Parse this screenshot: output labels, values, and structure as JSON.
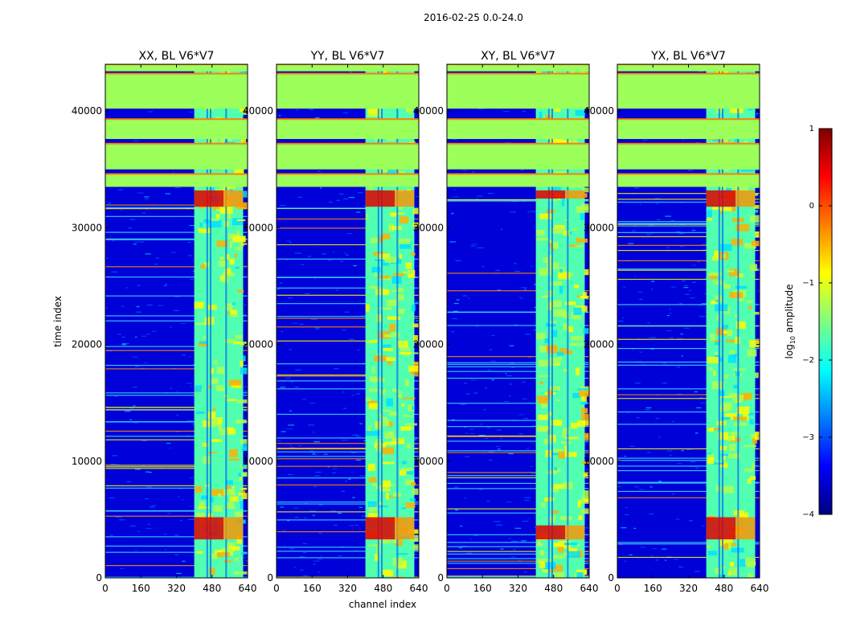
{
  "figure": {
    "suptitle": "2016-02-25 0.0-24.0",
    "shared_xlabel": "channel index",
    "shared_ylabel": "time index"
  },
  "colors": {
    "jet_stops": [
      "#00007f",
      "#0000ff",
      "#007fff",
      "#00ffff",
      "#7fff7f",
      "#ffff00",
      "#ff7f00",
      "#ff0000",
      "#7f0000"
    ],
    "flag_fill": "#9cff5a",
    "flag_line": "#ff7f00"
  },
  "colorbar": {
    "label_main": "log",
    "label_sub": "10",
    "label_rest": " amplitude",
    "range": [
      -4,
      1
    ],
    "ticks": [
      "1",
      "0",
      "−1",
      "−2",
      "−3",
      "−4"
    ],
    "tick_values": [
      1,
      0,
      -1,
      -2,
      -3,
      -4
    ]
  },
  "chart_data": [
    {
      "type": "heatmap",
      "title": "XX, BL V6*V7",
      "xlabel": "",
      "ylabel": "time index",
      "xlim": [
        0,
        640
      ],
      "ylim": [
        0,
        44000
      ],
      "xticks": [
        "0",
        "160",
        "320",
        "480",
        "640"
      ],
      "yticks": [
        "0",
        "10000",
        "20000",
        "30000",
        "40000"
      ],
      "active_channel_range": [
        400,
        620
      ],
      "flagged_time_bands": [
        [
          33500,
          34600
        ],
        [
          35000,
          37200
        ],
        [
          37600,
          39300
        ],
        [
          40200,
          43200
        ],
        [
          43400,
          44000
        ]
      ],
      "bright_time_bands": [
        [
          3300,
          5200
        ],
        [
          31800,
          33200
        ]
      ]
    },
    {
      "type": "heatmap",
      "title": "YY, BL V6*V7",
      "xlabel": "channel index",
      "ylabel": "",
      "xlim": [
        0,
        640
      ],
      "ylim": [
        0,
        44000
      ],
      "xticks": [
        "0",
        "160",
        "320",
        "480",
        "640"
      ],
      "yticks": [
        "0",
        "10000",
        "20000",
        "30000",
        "40000"
      ],
      "active_channel_range": [
        400,
        620
      ],
      "flagged_time_bands": [
        [
          33500,
          34600
        ],
        [
          35000,
          37200
        ],
        [
          37600,
          39300
        ],
        [
          40200,
          43200
        ],
        [
          43400,
          44000
        ]
      ],
      "bright_time_bands": [
        [
          3300,
          5200
        ],
        [
          31800,
          33200
        ]
      ]
    },
    {
      "type": "heatmap",
      "title": "XY, BL V6*V7",
      "xlabel": "",
      "ylabel": "",
      "xlim": [
        0,
        640
      ],
      "ylim": [
        0,
        44000
      ],
      "xticks": [
        "0",
        "160",
        "320",
        "480",
        "640"
      ],
      "yticks": [
        "0",
        "10000",
        "20000",
        "30000",
        "40000"
      ],
      "active_channel_range": [
        400,
        620
      ],
      "flagged_time_bands": [
        [
          33500,
          34600
        ],
        [
          35000,
          37200
        ],
        [
          37600,
          39300
        ],
        [
          40200,
          43200
        ],
        [
          43400,
          44000
        ]
      ],
      "bright_time_bands": [
        [
          3300,
          4500
        ],
        [
          32500,
          33200
        ]
      ]
    },
    {
      "type": "heatmap",
      "title": "YX, BL V6*V7",
      "xlabel": "",
      "ylabel": "",
      "xlim": [
        0,
        640
      ],
      "ylim": [
        0,
        44000
      ],
      "xticks": [
        "0",
        "160",
        "320",
        "480",
        "640"
      ],
      "yticks": [
        "0",
        "10000",
        "20000",
        "30000",
        "40000"
      ],
      "active_channel_range": [
        400,
        620
      ],
      "flagged_time_bands": [
        [
          33500,
          34600
        ],
        [
          35000,
          37200
        ],
        [
          37600,
          39300
        ],
        [
          40200,
          43200
        ],
        [
          43400,
          44000
        ]
      ],
      "bright_time_bands": [
        [
          3300,
          5200
        ],
        [
          31800,
          33200
        ]
      ]
    }
  ]
}
